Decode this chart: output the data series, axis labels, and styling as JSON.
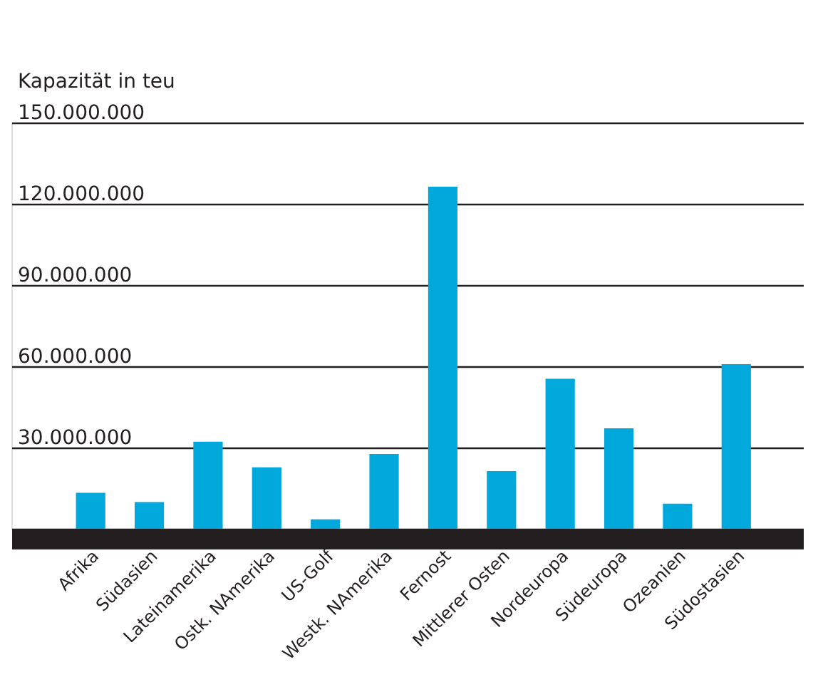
{
  "chart_data": {
    "type": "bar",
    "ylabel": "Kapazität in teu",
    "categories": [
      "Afrika",
      "Südasien",
      "Lateinamerika",
      "Ostk. NAmerika",
      "US-Golf",
      "Westk. NAmerika",
      "Fernost",
      "Mittlerer Osten",
      "Nordeuropa",
      "Südeuropa",
      "Ozeanien",
      "Südostasien"
    ],
    "values": [
      13300000,
      9900000,
      32200000,
      22700000,
      3500000,
      27600000,
      126300000,
      21300000,
      55400000,
      37100000,
      9300000,
      60800000
    ],
    "color": "#00a8dc",
    "ylim": [
      0,
      150000000
    ],
    "yticks": [
      {
        "value": 0,
        "label": null
      },
      {
        "value": 30000000,
        "label": "30.000.000"
      },
      {
        "value": 60000000,
        "label": "60.000.000"
      },
      {
        "value": 90000000,
        "label": "90.000.000"
      },
      {
        "value": 120000000,
        "label": "120.000.000"
      },
      {
        "value": 150000000,
        "label": "150.000.000"
      }
    ],
    "grid": "y"
  }
}
